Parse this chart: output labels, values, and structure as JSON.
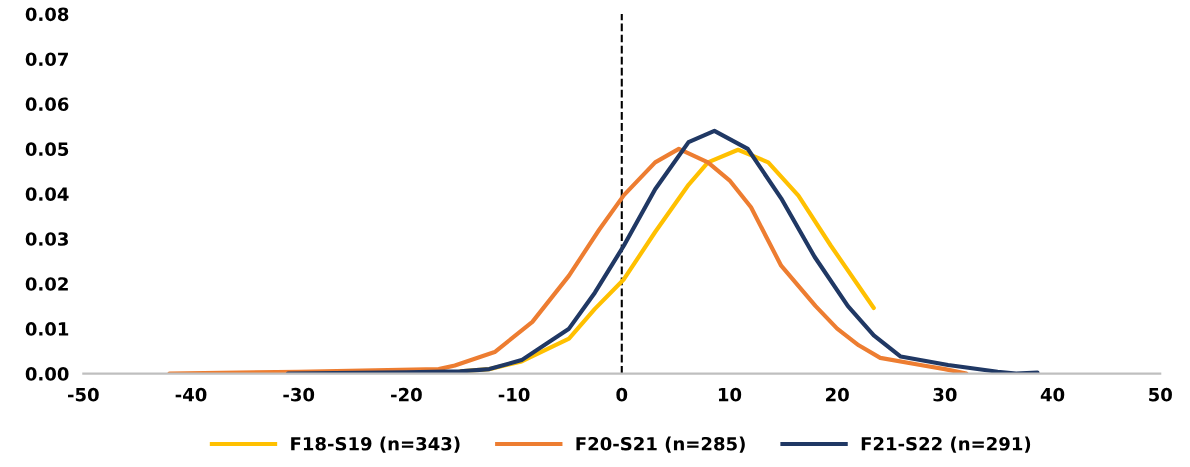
{
  "chart_data": {
    "type": "line",
    "xlim": [
      -50,
      50
    ],
    "xticks": [
      -50,
      -40,
      -30,
      -20,
      -10,
      0,
      10,
      20,
      30,
      40,
      50
    ],
    "ylim": [
      0,
      0.08
    ],
    "yticks": [
      {
        "value": 0,
        "label": "0.00"
      },
      {
        "value": 0.01,
        "label": "0.01"
      },
      {
        "value": 0.02,
        "label": "0.02"
      },
      {
        "value": 0.03,
        "label": "0.03"
      },
      {
        "value": 0.04,
        "label": "0.04"
      },
      {
        "value": 0.05,
        "label": "0.05"
      },
      {
        "value": 0.06,
        "label": "0.06"
      },
      {
        "value": 0.07,
        "label": "0.07"
      },
      {
        "value": 0.08,
        "label": "0.08"
      }
    ],
    "grid": false,
    "legend": "bottom",
    "marker": "none",
    "line_style": "solid",
    "ref_lines": [
      {
        "axis": "x",
        "value": 0,
        "color": "#000000",
        "line_style": "dashed"
      }
    ],
    "series": [
      {
        "name": "F18-S19 (n=343)",
        "color": "#ffc000",
        "x": [
          -15,
          -12.3,
          -9.3,
          -4.9,
          -2.5,
          0.2,
          3.1,
          6.2,
          8,
          10.8,
          13.6,
          16.4,
          19.4,
          23.4
        ],
        "values": [
          0.0005,
          0.001,
          0.0027,
          0.0078,
          0.0144,
          0.021,
          0.0315,
          0.042,
          0.047,
          0.0498,
          0.047,
          0.0396,
          0.0285,
          0.0146
        ]
      },
      {
        "name": "F20-S21 (n=285)",
        "color": "#ed7d31",
        "x": [
          -42,
          -30,
          -17,
          -15.5,
          -11.8,
          -8.3,
          -4.9,
          -2.1,
          0.2,
          3.1,
          5.3,
          8,
          10,
          12,
          14.8,
          18,
          20,
          22,
          24,
          28,
          30,
          32
        ],
        "values": [
          0,
          0.0004,
          0.001,
          0.0018,
          0.0048,
          0.0115,
          0.0218,
          0.032,
          0.0397,
          0.047,
          0.05,
          0.047,
          0.043,
          0.037,
          0.024,
          0.015,
          0.01,
          0.0063,
          0.0035,
          0.0018,
          0.001,
          0
        ]
      },
      {
        "name": "F21-S22 (n=291)",
        "color": "#203864",
        "x": [
          -31,
          -20,
          -15,
          -12.3,
          -9.3,
          -4.9,
          -2.5,
          0.2,
          3.1,
          6.2,
          8.6,
          11.7,
          14.8,
          17.9,
          21,
          23.4,
          25.9,
          30.3,
          34.9,
          36.6,
          38.6
        ],
        "values": [
          0,
          0.0003,
          0.0005,
          0.001,
          0.003,
          0.01,
          0.018,
          0.0285,
          0.041,
          0.0515,
          0.054,
          0.05,
          0.039,
          0.026,
          0.015,
          0.0085,
          0.0038,
          0.0019,
          0.0004,
          0,
          0.0002
        ]
      }
    ]
  }
}
